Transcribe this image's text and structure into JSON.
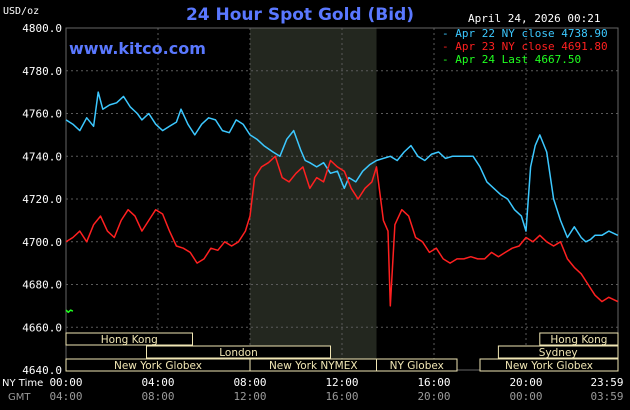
{
  "chart_data": {
    "type": "line",
    "title": "24 Hour Spot Gold (Bid)",
    "site": "www.kitco.com",
    "ylabel": "USD/oz",
    "datetime": "April 24, 2026 00:21",
    "ylim": [
      4640,
      4800
    ],
    "yticks": [
      "4800.0",
      "4780.0",
      "4760.0",
      "4740.0",
      "4720.0",
      "4700.0",
      "4680.0",
      "4660.0",
      "4640.0"
    ],
    "x_ny_label": "NY Time",
    "x_gmt_label": "GMT",
    "x_ny_ticks": [
      "00:00",
      "04:00",
      "08:00",
      "12:00",
      "16:00",
      "20:00",
      "23:59"
    ],
    "x_gmt_ticks": [
      "04:00",
      "08:00",
      "12:00",
      "16:00",
      "20:00",
      "00:00",
      "03:59"
    ],
    "colors": {
      "apr22": "#3cc8ff",
      "apr23": "#ff2020",
      "apr24": "#20ff20",
      "grid": "#5a5a5a",
      "session": "#f0e6b4"
    },
    "legend": [
      {
        "label": "- Apr 22 NY close 4738.90",
        "color": "#3cc8ff"
      },
      {
        "label": "- Apr 23 NY close 4691.80",
        "color": "#ff2020"
      },
      {
        "label": "- Apr 24 Last 4667.50",
        "color": "#20ff20"
      }
    ],
    "highlight_hours": [
      8,
      13.5
    ],
    "sessions": [
      {
        "label": "Hong Kong",
        "start": 0,
        "end": 5.5,
        "row": 0
      },
      {
        "label": "London",
        "start": 3.5,
        "end": 11.5,
        "row": 1
      },
      {
        "label": "New York Globex",
        "start": 0,
        "end": 8,
        "row": 2
      },
      {
        "label": "New York NYMEX",
        "start": 8,
        "end": 13.5,
        "row": 2
      },
      {
        "label": "NY Globex",
        "start": 13.5,
        "end": 17,
        "row": 2
      },
      {
        "label": "Hong Kong",
        "start": 20.6,
        "end": 24,
        "row": 0
      },
      {
        "label": "Sydney",
        "start": 18.8,
        "end": 24,
        "row": 1
      },
      {
        "label": "New York Globex",
        "start": 18,
        "end": 24,
        "row": 2
      }
    ],
    "series": [
      {
        "key": "apr22",
        "x": [
          0,
          0.3,
          0.6,
          0.9,
          1.2,
          1.4,
          1.6,
          1.9,
          2.2,
          2.5,
          2.8,
          3.1,
          3.3,
          3.6,
          3.9,
          4.2,
          4.5,
          4.8,
          5.0,
          5.3,
          5.6,
          5.9,
          6.2,
          6.5,
          6.8,
          7.1,
          7.4,
          7.7,
          8.0,
          8.3,
          8.6,
          9.0,
          9.3,
          9.6,
          9.9,
          10.2,
          10.4,
          10.6,
          10.9,
          11.2,
          11.5,
          11.8,
          12.1,
          12.3,
          12.6,
          12.9,
          13.2,
          13.5,
          13.8,
          14.1,
          14.4,
          14.7,
          15.0,
          15.3,
          15.6,
          15.9,
          16.2,
          16.5,
          16.8,
          17.1,
          17.4,
          17.7,
          18.0,
          18.3,
          18.6,
          18.9,
          19.2,
          19.5,
          19.8,
          20.0,
          20.2,
          20.4,
          20.6,
          20.9,
          21.2,
          21.5,
          21.8,
          22.1,
          22.4,
          22.6,
          22.8,
          23.0,
          23.3,
          23.6,
          23.99
        ],
        "y": [
          4757,
          4755,
          4752,
          4758,
          4754,
          4770,
          4762,
          4764,
          4765,
          4768,
          4763,
          4760,
          4757,
          4760,
          4755,
          4752,
          4754,
          4756,
          4762,
          4755,
          4750,
          4755,
          4758,
          4757,
          4752,
          4751,
          4757,
          4755,
          4750,
          4748,
          4745,
          4742,
          4740,
          4748,
          4752,
          4743,
          4738,
          4737,
          4735,
          4737,
          4732,
          4733,
          4725,
          4730,
          4728,
          4733,
          4736,
          4738,
          4739,
          4740,
          4738,
          4742,
          4745,
          4740,
          4738,
          4741,
          4742,
          4739,
          4740,
          4740,
          4740,
          4740,
          4735,
          4728,
          4725,
          4722,
          4720,
          4715,
          4712,
          4705,
          4735,
          4745,
          4750,
          4742,
          4720,
          4710,
          4702,
          4707,
          4702,
          4700,
          4701,
          4703,
          4703,
          4705,
          4703
        ]
      },
      {
        "key": "apr23",
        "x": [
          0,
          0.3,
          0.6,
          0.9,
          1.2,
          1.5,
          1.8,
          2.1,
          2.4,
          2.7,
          3.0,
          3.3,
          3.6,
          3.9,
          4.2,
          4.5,
          4.8,
          5.1,
          5.4,
          5.7,
          6.0,
          6.3,
          6.6,
          6.9,
          7.2,
          7.5,
          7.8,
          8.0,
          8.2,
          8.5,
          8.8,
          9.1,
          9.4,
          9.7,
          10.0,
          10.3,
          10.6,
          10.9,
          11.2,
          11.5,
          11.8,
          12.1,
          12.4,
          12.7,
          13.0,
          13.3,
          13.5,
          13.8,
          14.0,
          14.1,
          14.3,
          14.6,
          14.9,
          15.2,
          15.5,
          15.8,
          16.1,
          16.4,
          16.7,
          17.0,
          17.3,
          17.6,
          17.9,
          18.2,
          18.5,
          18.8,
          19.1,
          19.4,
          19.7,
          20.0,
          20.3,
          20.6,
          20.9,
          21.2,
          21.5,
          21.8,
          22.1,
          22.4,
          22.7,
          23.0,
          23.3,
          23.6,
          23.99
        ],
        "y": [
          4700,
          4702,
          4705,
          4700,
          4708,
          4712,
          4705,
          4702,
          4710,
          4715,
          4712,
          4705,
          4710,
          4715,
          4713,
          4705,
          4698,
          4697,
          4695,
          4690,
          4692,
          4697,
          4696,
          4700,
          4698,
          4700,
          4705,
          4712,
          4730,
          4735,
          4737,
          4740,
          4730,
          4728,
          4732,
          4735,
          4725,
          4730,
          4728,
          4738,
          4735,
          4733,
          4725,
          4720,
          4725,
          4728,
          4735,
          4710,
          4705,
          4670,
          4708,
          4715,
          4712,
          4702,
          4700,
          4695,
          4697,
          4692,
          4690,
          4692,
          4692,
          4693,
          4692,
          4692,
          4695,
          4693,
          4695,
          4697,
          4698,
          4702,
          4700,
          4703,
          4700,
          4698,
          4700,
          4692,
          4688,
          4685,
          4680,
          4675,
          4672,
          4674,
          4672
        ]
      },
      {
        "key": "apr24",
        "x": [
          0,
          0.1,
          0.2,
          0.3
        ],
        "y": [
          4668,
          4667,
          4668,
          4667.5
        ]
      }
    ]
  }
}
